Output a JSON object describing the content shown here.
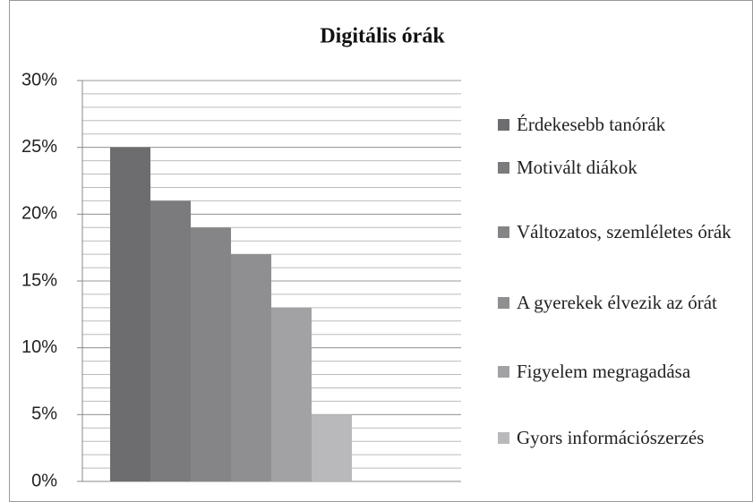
{
  "chart_data": {
    "type": "bar",
    "title": "Digitális órák",
    "categories": [
      null
    ],
    "series": [
      {
        "name": "Érdekesebb tanórák",
        "color": "#6d6d6f",
        "values": [
          25
        ]
      },
      {
        "name": "Motivált diákok",
        "color": "#7b7b7d",
        "values": [
          21
        ]
      },
      {
        "name": "Változatos, szemléletes órák",
        "color": "#858587",
        "values": [
          19
        ]
      },
      {
        "name": "A gyerekek élvezik az órát",
        "color": "#8f8f91",
        "values": [
          17
        ]
      },
      {
        "name": "Figyelem megragadása",
        "color": "#a2a2a4",
        "values": [
          13
        ]
      },
      {
        "name": "Gyors információszerzés",
        "color": "#b9b9bb",
        "values": [
          5
        ]
      }
    ],
    "ylim": [
      0,
      30
    ],
    "yticks": [
      {
        "value": 0,
        "label": "0%"
      },
      {
        "value": 5,
        "label": "5%"
      },
      {
        "value": 10,
        "label": "10%"
      },
      {
        "value": 15,
        "label": "15%"
      },
      {
        "value": 20,
        "label": "20%"
      },
      {
        "value": 25,
        "label": "25%"
      },
      {
        "value": 30,
        "label": "30%"
      }
    ],
    "minor_grid_step": 1,
    "grid": true,
    "legend": "right"
  }
}
